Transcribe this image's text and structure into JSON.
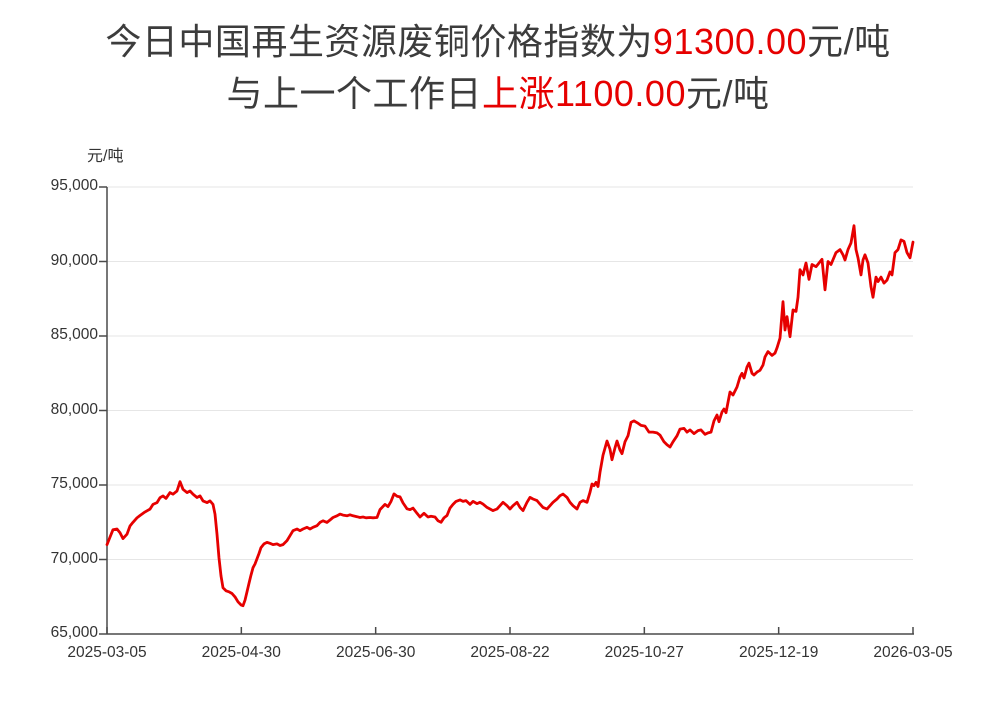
{
  "title": {
    "line1_prefix": "今日中国再生资源废铜价格指数为",
    "line1_value": "91300.00",
    "line1_suffix": "元/吨",
    "line2_prefix": "与上一个工作日",
    "line2_value": "上涨1100.00",
    "line2_suffix": "元/吨"
  },
  "colors": {
    "line": "#e60000",
    "title_text": "#3c3c3c",
    "highlight_red": "#e60000",
    "axis": "#4a4a4a",
    "grid": "#e6e6e6",
    "tick_text": "#333333"
  },
  "chart_data": {
    "type": "line",
    "title": "今日中国再生资源废铜价格指数为91300.00元/吨 与上一个工作日上涨1100.00元/吨",
    "latest_value": 91300.0,
    "change_from_previous_workday": 1100.0,
    "grid": "horizontal-only",
    "legend": "none",
    "y_axis": {
      "unit": "元/吨",
      "range": [
        65000,
        95000
      ],
      "labels": [
        "95,000",
        "90,000",
        "85,000",
        "80,000",
        "75,000",
        "70,000",
        "65,000"
      ]
    },
    "x_axis": {
      "tick_labels": [
        "2025-03-05",
        "2025-04-30",
        "2025-06-30",
        "2025-08-22",
        "2025-10-27",
        "2025-12-19",
        "2026-03-05"
      ]
    },
    "series": [
      {
        "name": "中国再生资源废铜价格指数",
        "color": "#e60000",
        "x_unit": "time-position 0..806 between 2025-03-05 and 2026-03-05",
        "points": [
          [
            0,
            71000
          ],
          [
            3,
            71500
          ],
          [
            6,
            72000
          ],
          [
            10,
            72050
          ],
          [
            13,
            71800
          ],
          [
            16,
            71400
          ],
          [
            20,
            71700
          ],
          [
            23,
            72250
          ],
          [
            26,
            72500
          ],
          [
            30,
            72800
          ],
          [
            33,
            72950
          ],
          [
            37,
            73150
          ],
          [
            40,
            73270
          ],
          [
            43,
            73380
          ],
          [
            46,
            73700
          ],
          [
            50,
            73820
          ],
          [
            53,
            74150
          ],
          [
            56,
            74270
          ],
          [
            59,
            74100
          ],
          [
            63,
            74490
          ],
          [
            66,
            74380
          ],
          [
            70,
            74600
          ],
          [
            73,
            75220
          ],
          [
            76,
            74710
          ],
          [
            80,
            74490
          ],
          [
            83,
            74600
          ],
          [
            86,
            74380
          ],
          [
            90,
            74160
          ],
          [
            93,
            74270
          ],
          [
            96,
            73930
          ],
          [
            100,
            73820
          ],
          [
            103,
            73930
          ],
          [
            106,
            73700
          ],
          [
            108,
            73050
          ],
          [
            110,
            71700
          ],
          [
            112,
            70100
          ],
          [
            114,
            68900
          ],
          [
            116,
            68100
          ],
          [
            119,
            67900
          ],
          [
            122,
            67830
          ],
          [
            125,
            67720
          ],
          [
            128,
            67490
          ],
          [
            131,
            67160
          ],
          [
            134,
            66950
          ],
          [
            136,
            66900
          ],
          [
            138,
            67270
          ],
          [
            140,
            67830
          ],
          [
            142,
            68400
          ],
          [
            144,
            68950
          ],
          [
            146,
            69450
          ],
          [
            148,
            69700
          ],
          [
            150,
            70050
          ],
          [
            152,
            70400
          ],
          [
            154,
            70800
          ],
          [
            157,
            71050
          ],
          [
            160,
            71150
          ],
          [
            163,
            71090
          ],
          [
            166,
            71000
          ],
          [
            170,
            71050
          ],
          [
            173,
            70940
          ],
          [
            176,
            71000
          ],
          [
            180,
            71270
          ],
          [
            183,
            71600
          ],
          [
            186,
            71930
          ],
          [
            190,
            72050
          ],
          [
            193,
            71930
          ],
          [
            196,
            72050
          ],
          [
            200,
            72160
          ],
          [
            203,
            72050
          ],
          [
            206,
            72160
          ],
          [
            210,
            72270
          ],
          [
            213,
            72490
          ],
          [
            216,
            72600
          ],
          [
            220,
            72490
          ],
          [
            223,
            72650
          ],
          [
            226,
            72820
          ],
          [
            230,
            72930
          ],
          [
            233,
            73050
          ],
          [
            236,
            72980
          ],
          [
            240,
            72930
          ],
          [
            243,
            73000
          ],
          [
            246,
            72930
          ],
          [
            250,
            72870
          ],
          [
            253,
            72820
          ],
          [
            256,
            72850
          ],
          [
            259,
            72800
          ],
          [
            263,
            72820
          ],
          [
            266,
            72800
          ],
          [
            270,
            72820
          ],
          [
            273,
            73350
          ],
          [
            278,
            73700
          ],
          [
            281,
            73550
          ],
          [
            284,
            73900
          ],
          [
            287,
            74400
          ],
          [
            290,
            74250
          ],
          [
            293,
            74200
          ],
          [
            296,
            73800
          ],
          [
            300,
            73400
          ],
          [
            303,
            73350
          ],
          [
            306,
            73450
          ],
          [
            310,
            73100
          ],
          [
            313,
            72850
          ],
          [
            317,
            73100
          ],
          [
            321,
            72850
          ],
          [
            324,
            72900
          ],
          [
            328,
            72850
          ],
          [
            331,
            72600
          ],
          [
            334,
            72500
          ],
          [
            337,
            72800
          ],
          [
            340,
            72950
          ],
          [
            343,
            73450
          ],
          [
            346,
            73700
          ],
          [
            349,
            73900
          ],
          [
            353,
            74000
          ],
          [
            356,
            73900
          ],
          [
            359,
            73950
          ],
          [
            363,
            73700
          ],
          [
            366,
            73900
          ],
          [
            370,
            73750
          ],
          [
            373,
            73840
          ],
          [
            376,
            73720
          ],
          [
            380,
            73500
          ],
          [
            383,
            73390
          ],
          [
            386,
            73280
          ],
          [
            390,
            73390
          ],
          [
            393,
            73610
          ],
          [
            396,
            73840
          ],
          [
            400,
            73610
          ],
          [
            403,
            73390
          ],
          [
            406,
            73610
          ],
          [
            410,
            73840
          ],
          [
            413,
            73500
          ],
          [
            416,
            73280
          ],
          [
            420,
            73840
          ],
          [
            423,
            74170
          ],
          [
            426,
            74060
          ],
          [
            430,
            73950
          ],
          [
            433,
            73720
          ],
          [
            436,
            73500
          ],
          [
            440,
            73390
          ],
          [
            443,
            73610
          ],
          [
            446,
            73840
          ],
          [
            450,
            74060
          ],
          [
            453,
            74280
          ],
          [
            456,
            74390
          ],
          [
            460,
            74170
          ],
          [
            463,
            73840
          ],
          [
            466,
            73610
          ],
          [
            470,
            73390
          ],
          [
            473,
            73840
          ],
          [
            476,
            73950
          ],
          [
            480,
            73840
          ],
          [
            483,
            74510
          ],
          [
            485,
            75070
          ],
          [
            487,
            74960
          ],
          [
            489,
            75180
          ],
          [
            491,
            74900
          ],
          [
            493,
            75850
          ],
          [
            496,
            77000
          ],
          [
            500,
            77950
          ],
          [
            503,
            77400
          ],
          [
            505,
            76700
          ],
          [
            508,
            77500
          ],
          [
            510,
            77950
          ],
          [
            513,
            77350
          ],
          [
            515,
            77100
          ],
          [
            518,
            77900
          ],
          [
            521,
            78300
          ],
          [
            524,
            79200
          ],
          [
            527,
            79300
          ],
          [
            531,
            79150
          ],
          [
            534,
            79000
          ],
          [
            538,
            78950
          ],
          [
            542,
            78550
          ],
          [
            546,
            78550
          ],
          [
            550,
            78500
          ],
          [
            553,
            78350
          ],
          [
            557,
            77900
          ],
          [
            560,
            77700
          ],
          [
            563,
            77550
          ],
          [
            566,
            77900
          ],
          [
            570,
            78300
          ],
          [
            573,
            78750
          ],
          [
            577,
            78800
          ],
          [
            580,
            78550
          ],
          [
            583,
            78700
          ],
          [
            587,
            78450
          ],
          [
            591,
            78650
          ],
          [
            594,
            78700
          ],
          [
            598,
            78400
          ],
          [
            601,
            78500
          ],
          [
            604,
            78550
          ],
          [
            607,
            79300
          ],
          [
            610,
            79700
          ],
          [
            612,
            79250
          ],
          [
            615,
            79900
          ],
          [
            617,
            80100
          ],
          [
            619,
            79850
          ],
          [
            621,
            80550
          ],
          [
            623,
            81240
          ],
          [
            626,
            81040
          ],
          [
            630,
            81580
          ],
          [
            633,
            82250
          ],
          [
            635,
            82500
          ],
          [
            637,
            82180
          ],
          [
            640,
            82920
          ],
          [
            642,
            83180
          ],
          [
            645,
            82500
          ],
          [
            647,
            82380
          ],
          [
            650,
            82580
          ],
          [
            653,
            82700
          ],
          [
            656,
            83050
          ],
          [
            658,
            83600
          ],
          [
            661,
            83950
          ],
          [
            665,
            83700
          ],
          [
            668,
            83850
          ],
          [
            670,
            84200
          ],
          [
            673,
            84850
          ],
          [
            676,
            87300
          ],
          [
            678,
            85400
          ],
          [
            680,
            86300
          ],
          [
            683,
            84950
          ],
          [
            686,
            86750
          ],
          [
            689,
            86650
          ],
          [
            691,
            87600
          ],
          [
            693,
            89450
          ],
          [
            696,
            89100
          ],
          [
            699,
            89900
          ],
          [
            702,
            88800
          ],
          [
            705,
            89800
          ],
          [
            709,
            89650
          ],
          [
            712,
            89900
          ],
          [
            715,
            90150
          ],
          [
            718,
            88100
          ],
          [
            721,
            90000
          ],
          [
            724,
            89800
          ],
          [
            729,
            90600
          ],
          [
            733,
            90800
          ],
          [
            736,
            90450
          ],
          [
            738,
            90100
          ],
          [
            741,
            90800
          ],
          [
            744,
            91250
          ],
          [
            747,
            92400
          ],
          [
            749,
            90800
          ],
          [
            751,
            90250
          ],
          [
            754,
            89100
          ],
          [
            756,
            90100
          ],
          [
            758,
            90450
          ],
          [
            761,
            89900
          ],
          [
            764,
            88300
          ],
          [
            766,
            87600
          ],
          [
            769,
            88950
          ],
          [
            771,
            88650
          ],
          [
            774,
            88950
          ],
          [
            777,
            88550
          ],
          [
            780,
            88750
          ],
          [
            783,
            89300
          ],
          [
            785,
            89100
          ],
          [
            788,
            90600
          ],
          [
            791,
            90800
          ],
          [
            794,
            91450
          ],
          [
            797,
            91350
          ],
          [
            800,
            90600
          ],
          [
            803,
            90250
          ],
          [
            806,
            91300
          ]
        ]
      }
    ]
  }
}
